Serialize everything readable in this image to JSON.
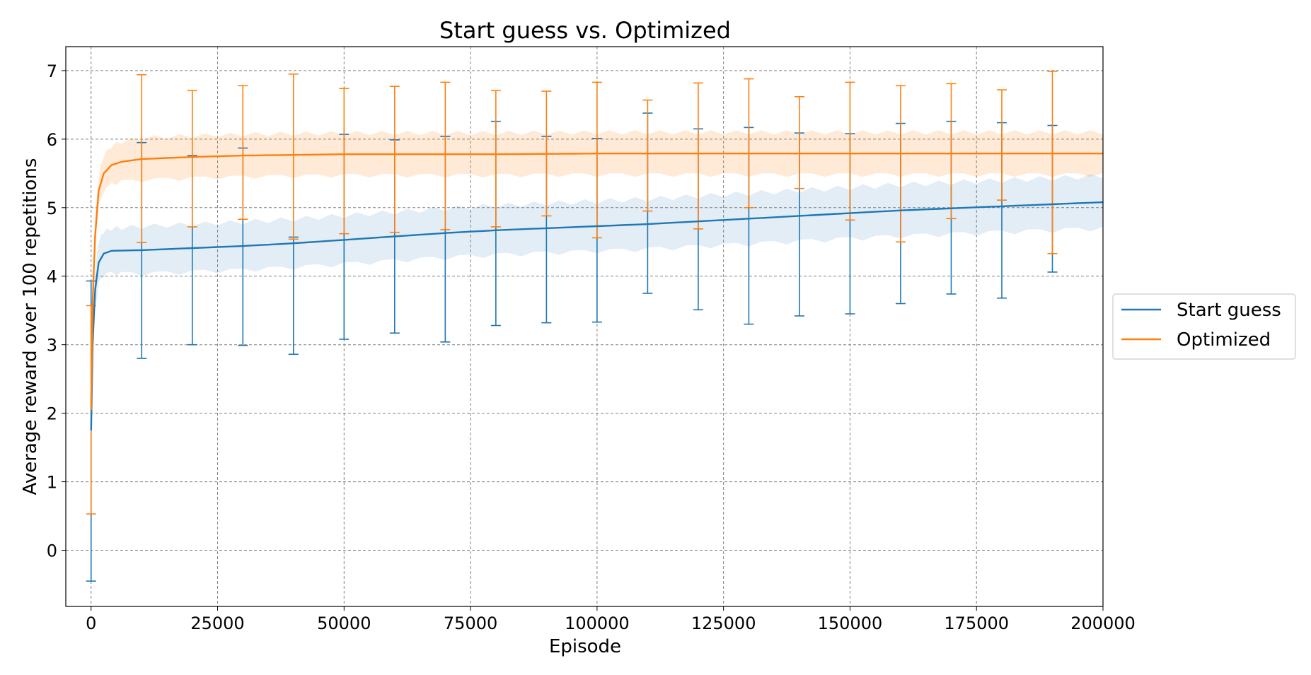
{
  "chart_data": {
    "type": "line",
    "title": "Start guess vs. Optimized",
    "xlabel": "Episode",
    "ylabel": "Average reward over 100 repetitions",
    "xlim": [
      -5000,
      200000
    ],
    "ylim": [
      -0.82,
      7.35
    ],
    "xticks": [
      0,
      25000,
      50000,
      75000,
      100000,
      125000,
      150000,
      175000,
      200000
    ],
    "yticks": [
      0,
      1,
      2,
      3,
      4,
      5,
      6,
      7
    ],
    "grid": true,
    "legend_position": "right, outside plot",
    "series": [
      {
        "name": "Start guess",
        "color": "#1f77b4",
        "band_color": "#1f77b4",
        "mean": [
          [
            0,
            1.75
          ],
          [
            300,
            3.0
          ],
          [
            800,
            3.8
          ],
          [
            1500,
            4.2
          ],
          [
            2500,
            4.33
          ],
          [
            4000,
            4.37
          ],
          [
            10000,
            4.38
          ],
          [
            20000,
            4.41
          ],
          [
            30000,
            4.44
          ],
          [
            40000,
            4.48
          ],
          [
            50000,
            4.53
          ],
          [
            60000,
            4.58
          ],
          [
            70000,
            4.63
          ],
          [
            80000,
            4.67
          ],
          [
            90000,
            4.7
          ],
          [
            100000,
            4.73
          ],
          [
            110000,
            4.76
          ],
          [
            120000,
            4.8
          ],
          [
            130000,
            4.84
          ],
          [
            140000,
            4.88
          ],
          [
            150000,
            4.92
          ],
          [
            160000,
            4.96
          ],
          [
            170000,
            4.99
          ],
          [
            180000,
            5.02
          ],
          [
            190000,
            5.05
          ],
          [
            200000,
            5.08
          ]
        ],
        "band_halfwidth": [
          [
            0,
            0.3
          ],
          [
            2000,
            0.35
          ],
          [
            10000,
            0.38
          ],
          [
            100000,
            0.4
          ],
          [
            200000,
            0.42
          ]
        ],
        "errorbars": [
          {
            "x": 0,
            "low": -0.45,
            "high": 3.93
          },
          {
            "x": 10000,
            "low": 2.8,
            "high": 5.95
          },
          {
            "x": 20000,
            "low": 3.0,
            "high": 5.76
          },
          {
            "x": 30000,
            "low": 2.99,
            "high": 5.87
          },
          {
            "x": 40000,
            "low": 2.86,
            "high": 4.57
          },
          {
            "x": 50000,
            "low": 3.08,
            "high": 6.07
          },
          {
            "x": 60000,
            "low": 3.17,
            "high": 5.99
          },
          {
            "x": 70000,
            "low": 3.04,
            "high": 6.04
          },
          {
            "x": 80000,
            "low": 3.28,
            "high": 6.26
          },
          {
            "x": 90000,
            "low": 3.32,
            "high": 6.04
          },
          {
            "x": 100000,
            "low": 3.33,
            "high": 6.01
          },
          {
            "x": 110000,
            "low": 3.75,
            "high": 6.38
          },
          {
            "x": 120000,
            "low": 3.51,
            "high": 6.15
          },
          {
            "x": 130000,
            "low": 3.3,
            "high": 6.17
          },
          {
            "x": 140000,
            "low": 3.42,
            "high": 6.09
          },
          {
            "x": 150000,
            "low": 3.45,
            "high": 6.08
          },
          {
            "x": 160000,
            "low": 3.6,
            "high": 6.23
          },
          {
            "x": 170000,
            "low": 3.74,
            "high": 6.26
          },
          {
            "x": 180000,
            "low": 3.68,
            "high": 6.24
          },
          {
            "x": 190000,
            "low": 4.06,
            "high": 6.2
          }
        ]
      },
      {
        "name": "Optimized",
        "color": "#ff7f0e",
        "band_color": "#ff7f0e",
        "mean": [
          [
            0,
            2.05
          ],
          [
            300,
            3.6
          ],
          [
            800,
            4.6
          ],
          [
            1500,
            5.25
          ],
          [
            2500,
            5.5
          ],
          [
            4000,
            5.62
          ],
          [
            6000,
            5.67
          ],
          [
            10000,
            5.71
          ],
          [
            20000,
            5.74
          ],
          [
            30000,
            5.76
          ],
          [
            40000,
            5.77
          ],
          [
            50000,
            5.78
          ],
          [
            60000,
            5.78
          ],
          [
            80000,
            5.78
          ],
          [
            100000,
            5.79
          ],
          [
            120000,
            5.79
          ],
          [
            140000,
            5.79
          ],
          [
            160000,
            5.79
          ],
          [
            180000,
            5.79
          ],
          [
            200000,
            5.79
          ]
        ],
        "band_halfwidth": [
          [
            0,
            0.2
          ],
          [
            3000,
            0.3
          ],
          [
            10000,
            0.34
          ],
          [
            200000,
            0.34
          ]
        ],
        "errorbars": [
          {
            "x": 0,
            "low": 0.53,
            "high": 3.57
          },
          {
            "x": 10000,
            "low": 4.49,
            "high": 6.94
          },
          {
            "x": 20000,
            "low": 4.72,
            "high": 6.71
          },
          {
            "x": 30000,
            "low": 4.83,
            "high": 6.78
          },
          {
            "x": 40000,
            "low": 4.54,
            "high": 6.95
          },
          {
            "x": 50000,
            "low": 4.62,
            "high": 6.74
          },
          {
            "x": 60000,
            "low": 4.64,
            "high": 6.77
          },
          {
            "x": 70000,
            "low": 4.68,
            "high": 6.83
          },
          {
            "x": 80000,
            "low": 4.72,
            "high": 6.71
          },
          {
            "x": 90000,
            "low": 4.88,
            "high": 6.7
          },
          {
            "x": 100000,
            "low": 4.56,
            "high": 6.83
          },
          {
            "x": 110000,
            "low": 4.95,
            "high": 6.57
          },
          {
            "x": 120000,
            "low": 4.69,
            "high": 6.82
          },
          {
            "x": 130000,
            "low": 5.0,
            "high": 6.88
          },
          {
            "x": 140000,
            "low": 5.28,
            "high": 6.62
          },
          {
            "x": 150000,
            "low": 4.82,
            "high": 6.83
          },
          {
            "x": 160000,
            "low": 4.5,
            "high": 6.78
          },
          {
            "x": 170000,
            "low": 4.84,
            "high": 6.81
          },
          {
            "x": 180000,
            "low": 5.11,
            "high": 6.72
          },
          {
            "x": 190000,
            "low": 4.33,
            "high": 6.99
          }
        ]
      }
    ]
  }
}
